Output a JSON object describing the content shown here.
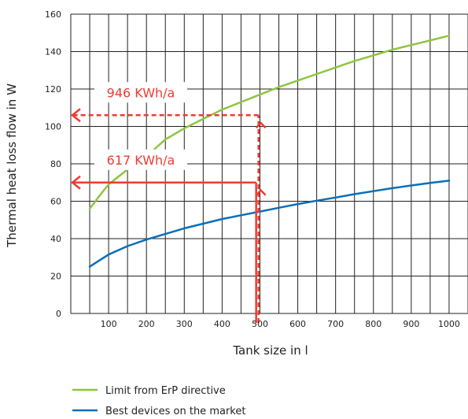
{
  "chart_data": {
    "type": "line",
    "title": "",
    "xlabel": "Tank size in l",
    "ylabel": "Thermal heat loss flow in W",
    "xlim": [
      0,
      1000
    ],
    "ylim": [
      0,
      160
    ],
    "x_ticks": [
      100,
      200,
      300,
      400,
      500,
      600,
      700,
      800,
      900,
      1000
    ],
    "y_ticks": [
      0,
      20,
      40,
      60,
      80,
      100,
      120,
      140,
      160
    ],
    "x_grid_step": 50,
    "y_grid_step": 20,
    "grid": true,
    "legend_position": "bottom-left",
    "series": [
      {
        "name": "Limit from ErP directive",
        "color": "#8dc63f",
        "x": [
          50,
          80,
          100,
          150,
          200,
          250,
          300,
          350,
          400,
          450,
          500,
          550,
          600,
          650,
          700,
          750,
          800,
          850,
          900,
          950,
          1000
        ],
        "y": [
          56,
          64,
          69,
          77,
          84,
          93,
          99,
          104,
          109,
          113,
          117,
          121,
          124.5,
          128,
          131.5,
          135,
          138,
          141,
          143.5,
          146,
          148.5
        ]
      },
      {
        "name": "Best devices on the market",
        "color": "#0b6fb8",
        "x": [
          50,
          100,
          150,
          200,
          250,
          300,
          350,
          400,
          450,
          500,
          550,
          600,
          650,
          700,
          750,
          800,
          850,
          900,
          950,
          1000
        ],
        "y": [
          25,
          31.5,
          36,
          39.5,
          42.5,
          45.5,
          48,
          50.5,
          52.5,
          54.5,
          56.5,
          58.5,
          60.3,
          62,
          63.8,
          65.4,
          67,
          68.4,
          69.8,
          71
        ]
      }
    ],
    "annotations": [
      {
        "label": "946 KWh/a",
        "x": 490,
        "y": 106,
        "style": "dashed",
        "color": "#ee3b33"
      },
      {
        "label": "617 KWh/a",
        "x": 490,
        "y": 70,
        "style": "solid",
        "color": "#ee3b33"
      }
    ]
  }
}
